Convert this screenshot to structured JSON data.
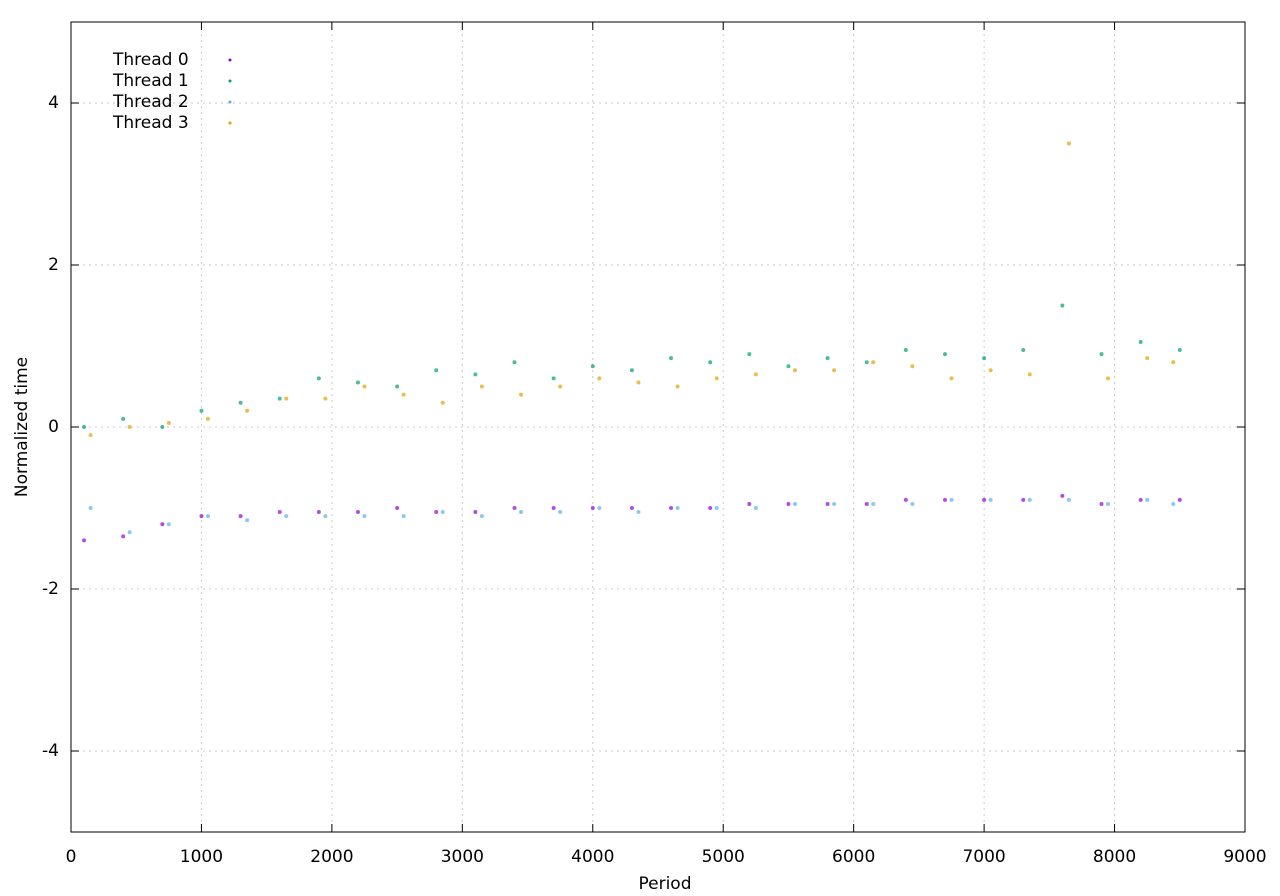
{
  "chart_data": {
    "type": "scatter",
    "x_label": "Period",
    "y_label": "Normalized time",
    "xlim": [
      0,
      9000
    ],
    "ylim": [
      -5,
      5
    ],
    "xticks": [
      0,
      1000,
      2000,
      3000,
      4000,
      5000,
      6000,
      7000,
      8000,
      9000
    ],
    "yticks": [
      -4,
      -2,
      0,
      2,
      4
    ],
    "grid": true,
    "legend": "top-left",
    "series": [
      {
        "name": "Thread 0",
        "color": "#9400d3",
        "x": [
          100,
          400,
          700,
          1000,
          1300,
          1600,
          1900,
          2200,
          2500,
          2800,
          3100,
          3400,
          3700,
          4000,
          4300,
          4600,
          4900,
          5200,
          5500,
          5800,
          6100,
          6400,
          6700,
          7000,
          7300,
          7600,
          7900,
          8200,
          8500
        ],
        "values": [
          -1.4,
          -1.35,
          -1.2,
          -1.1,
          -1.1,
          -1.05,
          -1.05,
          -1.05,
          -1.0,
          -1.05,
          -1.05,
          -1.0,
          -1.0,
          -1.0,
          -1.0,
          -1.0,
          -1.0,
          -0.95,
          -0.95,
          -0.95,
          -0.95,
          -0.9,
          -0.9,
          -0.9,
          -0.9,
          -0.85,
          -0.95,
          -0.9,
          -0.9
        ]
      },
      {
        "name": "Thread 1",
        "color": "#009e73",
        "x": [
          100,
          400,
          700,
          1000,
          1300,
          1600,
          1900,
          2200,
          2500,
          2800,
          3100,
          3400,
          3700,
          4000,
          4300,
          4600,
          4900,
          5200,
          5500,
          5800,
          6100,
          6400,
          6700,
          7000,
          7300,
          7600,
          7900,
          8200,
          8500
        ],
        "values": [
          0.0,
          0.1,
          0.0,
          0.2,
          0.3,
          0.35,
          0.6,
          0.55,
          0.5,
          0.7,
          0.65,
          0.8,
          0.6,
          0.75,
          0.7,
          0.85,
          0.8,
          0.9,
          0.75,
          0.85,
          0.8,
          0.95,
          0.9,
          0.85,
          0.95,
          1.5,
          0.9,
          1.05,
          0.95
        ]
      },
      {
        "name": "Thread 2",
        "color": "#56b4e9",
        "x": [
          150,
          450,
          750,
          1050,
          1350,
          1650,
          1950,
          2250,
          2550,
          2850,
          3150,
          3450,
          3750,
          4050,
          4350,
          4650,
          4950,
          5250,
          5550,
          5850,
          6150,
          6450,
          6750,
          7050,
          7350,
          7650,
          7950,
          8250,
          8450
        ],
        "values": [
          -1.0,
          -1.3,
          -1.2,
          -1.1,
          -1.15,
          -1.1,
          -1.1,
          -1.1,
          -1.1,
          -1.05,
          -1.1,
          -1.05,
          -1.05,
          -1.0,
          -1.05,
          -1.0,
          -1.0,
          -1.0,
          -0.95,
          -0.95,
          -0.95,
          -0.95,
          -0.9,
          -0.9,
          -0.9,
          -0.9,
          -0.95,
          -0.9,
          -0.95
        ]
      },
      {
        "name": "Thread 3",
        "color": "#e69f00",
        "x": [
          150,
          450,
          750,
          1050,
          1350,
          1650,
          1950,
          2250,
          2550,
          2850,
          3150,
          3450,
          3750,
          4050,
          4350,
          4650,
          4950,
          5250,
          5550,
          5850,
          6150,
          6450,
          6750,
          7050,
          7350,
          7650,
          7950,
          8250,
          8450
        ],
        "values": [
          -0.1,
          0.0,
          0.05,
          0.1,
          0.2,
          0.35,
          0.35,
          0.5,
          0.4,
          0.3,
          0.5,
          0.4,
          0.5,
          0.6,
          0.55,
          0.5,
          0.6,
          0.65,
          0.7,
          0.7,
          0.8,
          0.75,
          0.6,
          0.7,
          0.65,
          3.5,
          0.6,
          0.85,
          0.8
        ]
      }
    ]
  }
}
